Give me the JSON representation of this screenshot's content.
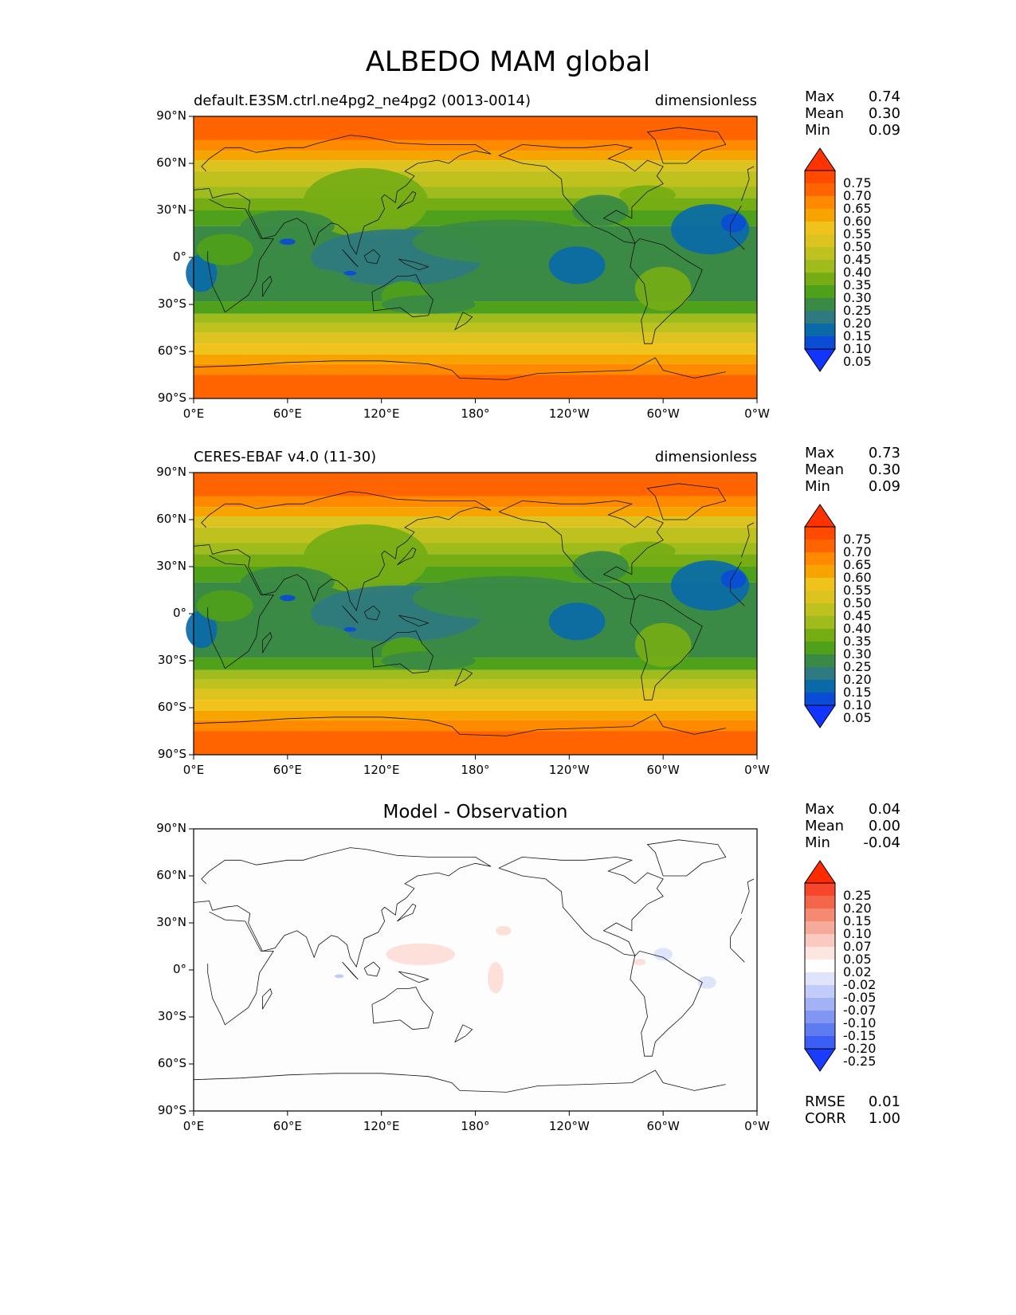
{
  "title": "ALBEDO MAM global",
  "lat_ticks": [
    "90°N",
    "60°N",
    "30°N",
    "0°",
    "30°S",
    "60°S",
    "90°S"
  ],
  "lon_ticks": [
    "0°E",
    "60°E",
    "120°E",
    "180°",
    "120°W",
    "60°W",
    "0°W"
  ],
  "panels": [
    {
      "label": "default.E3SM.ctrl.ne4pg2_ne4pg2 (0013-0014)",
      "units": "dimensionless",
      "center_title": "",
      "stats": [
        {
          "key": "Max",
          "value": "0.74"
        },
        {
          "key": "Mean",
          "value": "0.30"
        },
        {
          "key": "Min",
          "value": "0.09"
        }
      ],
      "colorbar": {
        "labels": [
          "0.75",
          "0.70",
          "0.65",
          "0.60",
          "0.55",
          "0.50",
          "0.45",
          "0.40",
          "0.35",
          "0.30",
          "0.25",
          "0.20",
          "0.15",
          "0.10",
          "0.05"
        ],
        "colors": [
          "#ff3300",
          "#ff4a00",
          "#ff6400",
          "#ff8a00",
          "#f8a400",
          "#f0c21c",
          "#ddc31f",
          "#bfc21e",
          "#9fbb1c",
          "#76ad15",
          "#4fa01a",
          "#3a8a45",
          "#2f7a80",
          "#0a6aa8",
          "#0a4cd6",
          "#1234ff"
        ]
      },
      "kind": "albedo"
    },
    {
      "label": "CERES-EBAF v4.0 (11-30)",
      "units": "dimensionless",
      "center_title": "",
      "stats": [
        {
          "key": "Max",
          "value": "0.73"
        },
        {
          "key": "Mean",
          "value": "0.30"
        },
        {
          "key": "Min",
          "value": "0.09"
        }
      ],
      "colorbar": {
        "labels": [
          "0.75",
          "0.70",
          "0.65",
          "0.60",
          "0.55",
          "0.50",
          "0.45",
          "0.40",
          "0.35",
          "0.30",
          "0.25",
          "0.20",
          "0.15",
          "0.10",
          "0.05"
        ],
        "colors": [
          "#ff3300",
          "#ff4a00",
          "#ff6400",
          "#ff8a00",
          "#f8a400",
          "#f0c21c",
          "#ddc31f",
          "#bfc21e",
          "#9fbb1c",
          "#76ad15",
          "#4fa01a",
          "#3a8a45",
          "#2f7a80",
          "#0a6aa8",
          "#0a4cd6",
          "#1234ff"
        ]
      },
      "kind": "albedo"
    },
    {
      "label": "",
      "units": "",
      "center_title": "Model - Observation",
      "stats": [
        {
          "key": "Max",
          "value": "0.04"
        },
        {
          "key": "Mean",
          "value": "0.00"
        },
        {
          "key": "Min",
          "value": "-0.04"
        }
      ],
      "extra_stats": [
        {
          "key": "RMSE",
          "value": "0.01"
        },
        {
          "key": "CORR",
          "value": "1.00"
        }
      ],
      "colorbar": {
        "labels": [
          "0.25",
          "0.20",
          "0.15",
          "0.10",
          "0.07",
          "0.05",
          "0.02",
          "-0.02",
          "-0.05",
          "-0.07",
          "-0.10",
          "-0.15",
          "-0.20",
          "-0.25"
        ],
        "colors": [
          "#ff2a00",
          "#f8462a",
          "#f4664a",
          "#f48a72",
          "#f6aa99",
          "#fac9bf",
          "#fde6e0",
          "#ffffff",
          "#dfe4fb",
          "#c2ccf8",
          "#a3b2f4",
          "#8196f2",
          "#5f7bf0",
          "#3b5ff4",
          "#1a3cff"
        ]
      },
      "kind": "diff"
    }
  ]
}
